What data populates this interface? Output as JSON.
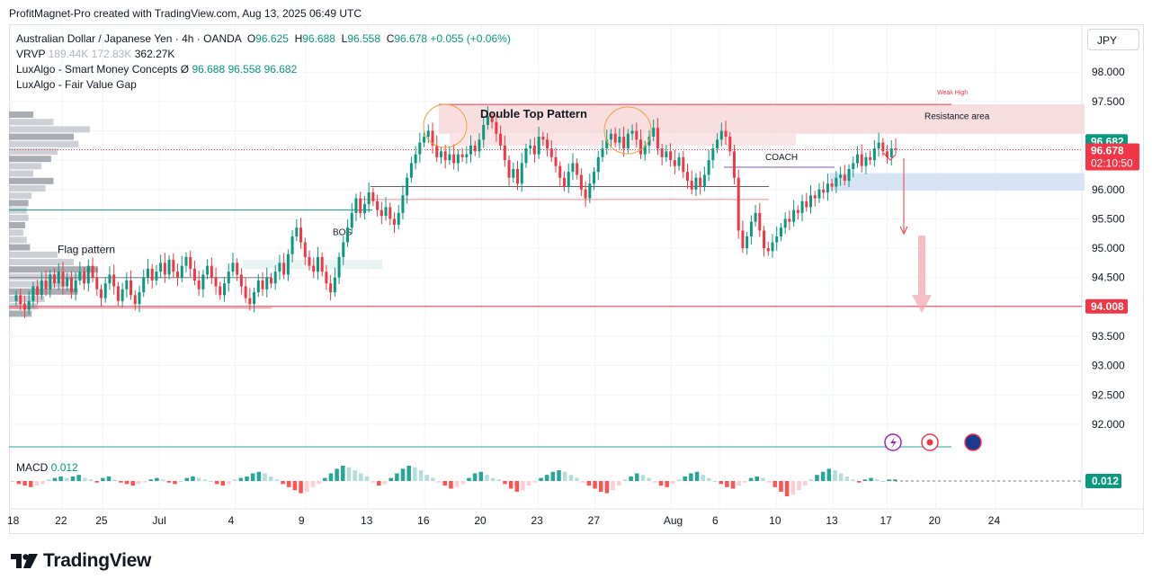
{
  "credit": "ProfitMagnet-Pro created with TradingView.com, Aug 13, 2025 06:49 UTC",
  "currency_button": "JPY",
  "legend": {
    "symbol": "Australian Dollar / Japanese Yen · 4h · OANDA",
    "o_label": "O",
    "o": "96.625",
    "h_label": "H",
    "h": "96.688",
    "l_label": "L",
    "l": "96.558",
    "c_label": "C",
    "c": "96.678",
    "change": "+0.055 (+0.06%)",
    "vrvp_label": "VRVP",
    "vrvp_v1": "189.44K",
    "vrvp_v2": "172.83K",
    "vrvp_v3": "362.27K",
    "smc_label": "LuxAlgo - Smart Money Concepts",
    "smc_sym": "Ø",
    "smc_v1": "96.688",
    "smc_v2": "96.558",
    "smc_v3": "96.682",
    "fvg_label": "LuxAlgo - Fair Value Gap"
  },
  "macd": {
    "label": "MACD",
    "value": "0.012"
  },
  "logo": "TradingView",
  "colors": {
    "up": "#089981",
    "down": "#f23645",
    "bg": "#ffffff",
    "resistance": "#f7d6d8",
    "demand": "#d6e4f5",
    "grid": "#f0f3fa"
  },
  "chart_data": {
    "type": "candlestick",
    "title": "Australian Dollar / Japanese Yen · 4h · OANDA",
    "ylim": [
      91.6,
      98.8
    ],
    "y_ticks": [
      "92.000",
      "92.500",
      "93.000",
      "93.500",
      "94.000",
      "94.500",
      "95.000",
      "95.500",
      "96.000",
      "96.500",
      "97.000",
      "97.500",
      "98.000"
    ],
    "y_tick_values": [
      92.0,
      92.5,
      93.0,
      93.5,
      94.0,
      94.5,
      95.0,
      95.5,
      96.0,
      96.5,
      97.0,
      97.5,
      98.0
    ],
    "x_ticks": [
      "18",
      "22",
      "25",
      "Jul",
      "4",
      "9",
      "13",
      "16",
      "20",
      "23",
      "27",
      "Aug",
      "6",
      "10",
      "13",
      "17",
      "20",
      "24"
    ],
    "x_tick_index": [
      0,
      19,
      34,
      55,
      83,
      109,
      132,
      153,
      174,
      195,
      216,
      244,
      262,
      283,
      304,
      324,
      342,
      364
    ],
    "current_price": "96.678",
    "countdown": "02:10:50",
    "smc_price": "96.682",
    "target_price": "94.008",
    "target_value": 94.008,
    "closes": [
      94.2,
      94.05,
      93.95,
      94.1,
      94.35,
      94.2,
      94.45,
      94.3,
      94.55,
      94.4,
      94.6,
      94.35,
      94.5,
      94.25,
      94.45,
      94.6,
      94.4,
      94.7,
      94.5,
      94.3,
      94.15,
      94.4,
      94.55,
      94.35,
      94.1,
      94.3,
      94.45,
      94.2,
      94.05,
      94.25,
      94.5,
      94.65,
      94.45,
      94.6,
      94.75,
      94.55,
      94.8,
      94.6,
      94.5,
      94.7,
      94.85,
      94.65,
      94.45,
      94.3,
      94.55,
      94.7,
      94.5,
      94.35,
      94.2,
      94.4,
      94.6,
      94.75,
      94.55,
      94.35,
      94.15,
      94.05,
      94.25,
      94.45,
      94.3,
      94.5,
      94.4,
      94.6,
      94.75,
      94.55,
      94.9,
      95.2,
      95.35,
      95.1,
      94.85,
      94.7,
      94.6,
      94.85,
      94.6,
      94.4,
      94.25,
      94.5,
      94.85,
      95.1,
      95.35,
      95.6,
      95.85,
      95.6,
      95.75,
      95.95,
      95.8,
      95.65,
      95.55,
      95.7,
      95.5,
      95.4,
      95.6,
      95.9,
      96.2,
      96.45,
      96.6,
      96.8,
      96.9,
      97.0,
      96.75,
      96.55,
      96.65,
      96.5,
      96.6,
      96.45,
      96.6,
      96.55,
      96.6,
      96.75,
      96.65,
      96.85,
      97.1,
      97.25,
      97.15,
      96.95,
      96.75,
      96.5,
      96.2,
      96.35,
      96.1,
      96.45,
      96.7,
      96.75,
      96.6,
      96.9,
      96.85,
      96.7,
      96.55,
      96.4,
      96.2,
      96.05,
      96.3,
      96.45,
      96.25,
      96.0,
      95.85,
      96.1,
      96.3,
      96.55,
      96.7,
      96.85,
      96.95,
      96.8,
      96.9,
      96.7,
      96.95,
      97.0,
      96.85,
      96.6,
      96.75,
      96.9,
      97.05,
      96.7,
      96.55,
      96.65,
      96.5,
      96.4,
      96.55,
      96.3,
      96.15,
      96.0,
      96.2,
      96.05,
      96.25,
      96.5,
      96.7,
      96.85,
      97.0,
      96.9,
      96.65,
      96.2,
      95.3,
      95.0,
      95.2,
      95.45,
      95.6,
      95.3,
      95.0,
      94.95,
      95.1,
      95.2,
      95.35,
      95.5,
      95.45,
      95.65,
      95.6,
      95.8,
      95.7,
      95.9,
      95.85,
      96.0,
      95.95,
      96.1,
      96.05,
      96.2,
      96.25,
      96.15,
      96.35,
      96.45,
      96.6,
      96.4,
      96.55,
      96.5,
      96.7,
      96.8,
      96.65,
      96.55,
      96.7,
      96.68
    ],
    "volume_profile_note": "VRVP histogram on left",
    "annotations": {
      "double_top": "Double Top Pattern",
      "resistance": "Resistance area",
      "weak_high": "Weak High",
      "coach": "COACH",
      "bos": "BOS",
      "flag": "Flag pattern"
    },
    "macd_hist": [
      0.0,
      -0.02,
      -0.03,
      -0.04,
      -0.03,
      -0.02,
      0.01,
      0.02,
      0.03,
      0.02,
      0.03,
      0.04,
      0.02,
      0.01,
      -0.01,
      0.02,
      0.03,
      0.01,
      -0.01,
      -0.02,
      -0.03,
      -0.02,
      -0.01,
      0.01,
      0.02,
      0.01,
      -0.01,
      -0.02,
      0.0,
      0.02,
      0.03,
      0.02,
      0.01,
      0.0,
      -0.02,
      -0.03,
      -0.02,
      0.01,
      0.02,
      0.03,
      0.05,
      0.06,
      0.05,
      0.03,
      0.01,
      -0.02,
      -0.04,
      -0.06,
      -0.08,
      -0.07,
      -0.04,
      -0.02,
      0.02,
      0.05,
      0.08,
      0.1,
      0.09,
      0.07,
      0.05,
      0.03,
      -0.01,
      -0.03,
      -0.02,
      0.02,
      0.05,
      0.08,
      0.1,
      0.09,
      0.07,
      0.04,
      0.02,
      -0.01,
      -0.03,
      -0.05,
      -0.04,
      -0.02,
      0.02,
      0.05,
      0.06,
      0.04,
      0.02,
      0.01,
      -0.02,
      -0.05,
      -0.07,
      -0.06,
      -0.03,
      -0.01,
      0.02,
      0.04,
      0.06,
      0.07,
      0.06,
      0.04,
      0.02,
      -0.01,
      -0.03,
      -0.05,
      -0.07,
      -0.08,
      -0.06,
      -0.03,
      0.01,
      0.03,
      0.05,
      0.04,
      0.02,
      -0.01,
      -0.03,
      -0.04,
      -0.02,
      0.01,
      0.03,
      0.05,
      0.06,
      0.04,
      0.02,
      0.0,
      -0.02,
      -0.04,
      -0.05,
      -0.03,
      -0.01,
      0.02,
      0.03,
      0.02,
      -0.01,
      -0.04,
      -0.07,
      -0.1,
      -0.09,
      -0.06,
      -0.03,
      0.01,
      0.04,
      0.06,
      0.08,
      0.07,
      0.05,
      0.03,
      0.01,
      -0.01,
      0.01,
      0.02,
      0.01,
      0.0,
      0.01,
      0.01
    ]
  }
}
